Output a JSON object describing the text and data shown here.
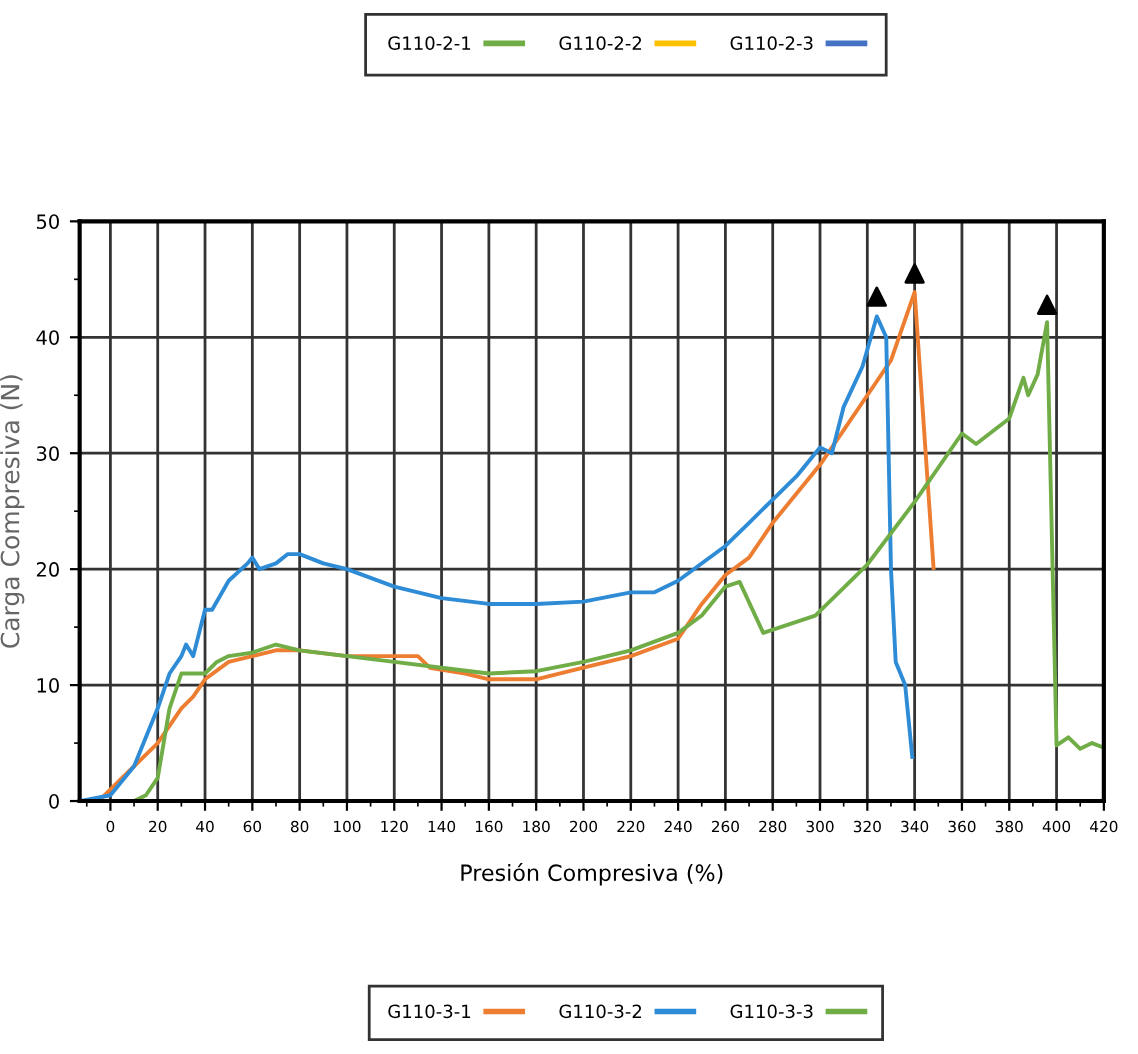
{
  "chart_data": {
    "type": "line",
    "xlabel": "Presión Compresiva (%)",
    "ylabel": "Carga Compresiva (N)",
    "xlim": [
      -13,
      420
    ],
    "xticks": [
      0,
      20,
      40,
      60,
      80,
      100,
      120,
      140,
      160,
      180,
      200,
      220,
      240,
      260,
      280,
      300,
      320,
      340,
      360,
      380,
      400,
      420
    ],
    "ylim": [
      0,
      50
    ],
    "yticks": [
      0,
      10,
      20,
      30,
      40,
      50
    ],
    "grid": true,
    "legend": "bottom",
    "line_style": "solid",
    "series": [
      {
        "name": "G110-2-1",
        "color": "#70ad47"
      },
      {
        "name": "G110-2-2",
        "color": "#ffc000"
      },
      {
        "name": "G110-2-3",
        "color": "#4472c4"
      },
      {
        "name": "G110-3-1",
        "color": "#ed7d31",
        "x": [
          -13,
          -5,
          0,
          10,
          20,
          30,
          35,
          40,
          50,
          60,
          70,
          80,
          100,
          120,
          130,
          135,
          150,
          160,
          180,
          200,
          220,
          240,
          250,
          260,
          270,
          280,
          290,
          300,
          310,
          320,
          330,
          340,
          348
        ],
        "values": [
          0,
          0,
          1,
          3,
          5,
          8,
          9,
          10.5,
          12,
          12.5,
          13,
          13,
          12.5,
          12.5,
          12.5,
          11.5,
          11,
          10.5,
          10.5,
          11.5,
          12.5,
          14,
          17,
          19.5,
          21,
          24,
          26.5,
          29,
          32,
          35,
          38,
          43.9,
          20.1
        ]
      },
      {
        "name": "G110-3-2",
        "color": "#2e8bd6",
        "x": [
          -13,
          0,
          10,
          20,
          25,
          30,
          32,
          35,
          40,
          43,
          50,
          58,
          60,
          63,
          70,
          75,
          80,
          90,
          100,
          120,
          140,
          160,
          180,
          200,
          220,
          230,
          240,
          260,
          270,
          280,
          290,
          300,
          305,
          310,
          318,
          324,
          328,
          330,
          332,
          336,
          339
        ],
        "values": [
          0,
          0.5,
          3,
          8,
          11,
          12.5,
          13.5,
          12.5,
          16.5,
          16.5,
          19,
          20.5,
          21,
          20,
          20.5,
          21.3,
          21.3,
          20.5,
          20,
          18.5,
          17.5,
          17,
          17,
          17.2,
          18,
          18,
          19,
          22,
          24,
          26,
          28,
          30.5,
          30,
          34,
          37.5,
          41.8,
          40,
          20,
          12,
          10,
          3.8
        ]
      },
      {
        "name": "G110-3-3",
        "color": "#70ad47",
        "x": [
          10,
          15,
          20,
          25,
          30,
          40,
          45,
          50,
          60,
          70,
          80,
          100,
          120,
          140,
          160,
          180,
          200,
          220,
          240,
          250,
          260,
          266,
          276,
          298,
          320,
          340,
          360,
          366,
          380,
          386,
          388,
          392,
          396,
          400,
          405,
          410,
          415,
          420
        ],
        "values": [
          0,
          0.5,
          2,
          8,
          11,
          11,
          12,
          12.5,
          12.8,
          13.5,
          13,
          12.5,
          12,
          11.5,
          11,
          11.2,
          12,
          13,
          14.5,
          16,
          18.5,
          18.9,
          14.5,
          16,
          20.4,
          25.8,
          31.7,
          30.8,
          33,
          36.5,
          35,
          36.8,
          41.3,
          4.8,
          5.5,
          4.5,
          5,
          4.6
        ]
      },
      {
        "type": "scatter",
        "color": "#000000",
        "marker": "triangle",
        "x": [
          324,
          340,
          396
        ],
        "values": [
          43.5,
          45.5,
          42.8
        ]
      }
    ]
  }
}
